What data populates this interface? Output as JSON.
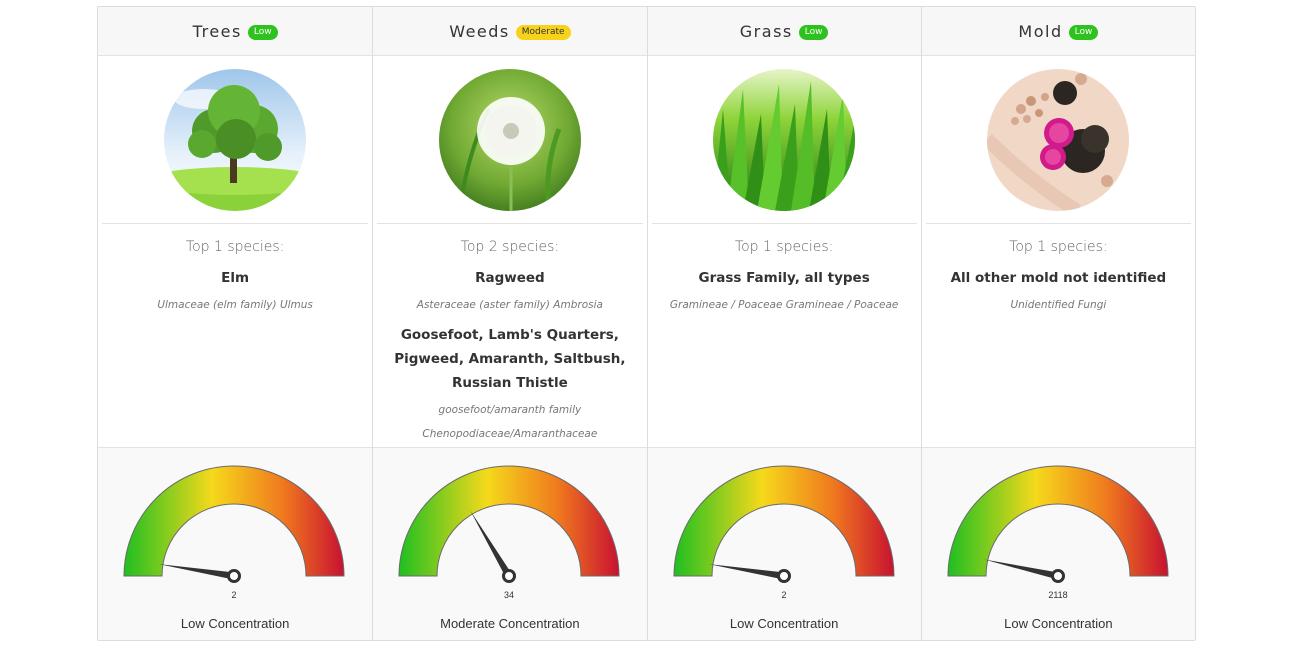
{
  "columns": [
    {
      "id": "trees",
      "title": "Trees",
      "level": "Low",
      "level_color": "#2ec21f",
      "image_icon": "tree-icon",
      "top_label": "Top 1 species:",
      "species": [
        {
          "name": "Elm",
          "latin": "Ulmaceae (elm family) Ulmus"
        }
      ],
      "gauge_value": 2,
      "gauge_fraction": 0.05,
      "gauge_label": "2",
      "concentration": "Low Concentration"
    },
    {
      "id": "weeds",
      "title": "Weeds",
      "level": "Moderate",
      "level_color": "#f7d21b",
      "image_icon": "dandelion-icon",
      "top_label": "Top 2 species:",
      "species": [
        {
          "name": "Ragweed",
          "latin": "Asteraceae (aster family) Ambrosia"
        },
        {
          "name": "Goosefoot, Lamb's Quarters, Pigweed, Amaranth, Saltbush, Russian Thistle",
          "latin": "goosefoot/amaranth family Chenopodiaceae/Amaranthaceae"
        }
      ],
      "gauge_value": 34,
      "gauge_fraction": 0.33,
      "gauge_label": "34",
      "concentration": "Moderate Concentration"
    },
    {
      "id": "grass",
      "title": "Grass",
      "level": "Low",
      "level_color": "#2ec21f",
      "image_icon": "grass-icon",
      "top_label": "Top 1 species:",
      "species": [
        {
          "name": "Grass Family, all types",
          "latin": "Gramineae / Poaceae Gramineae / Poaceae"
        }
      ],
      "gauge_value": 2,
      "gauge_fraction": 0.05,
      "gauge_label": "2",
      "concentration": "Low Concentration"
    },
    {
      "id": "mold",
      "title": "Mold",
      "level": "Low",
      "level_color": "#2ec21f",
      "image_icon": "mold-spores-icon",
      "top_label": "Top 1 species:",
      "species": [
        {
          "name": "All other mold not identified",
          "latin": "Unidentified Fungi"
        }
      ],
      "gauge_value": 2118,
      "gauge_fraction": 0.07,
      "gauge_label": "2118",
      "concentration": "Low Concentration"
    }
  ],
  "gauge_colors": [
    "#1fbf21",
    "#f5d91b",
    "#f07a1e",
    "#c81131"
  ]
}
